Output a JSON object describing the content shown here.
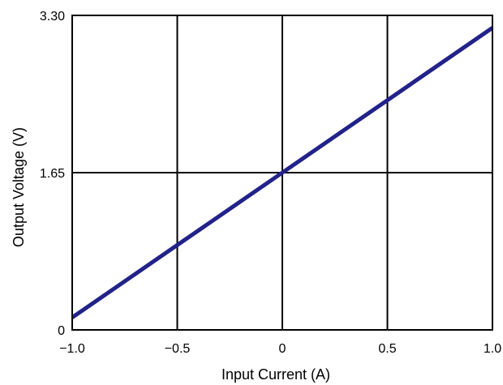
{
  "chart_data": {
    "type": "line",
    "title": "",
    "xlabel": "Input Current (A)",
    "ylabel": "Output Voltage (V)",
    "xlim": [
      -1.0,
      1.0
    ],
    "ylim": [
      0,
      3.3
    ],
    "grid": true,
    "legend": "none",
    "x_ticks": [
      {
        "value": -1.0,
        "label": "−1.0"
      },
      {
        "value": -0.5,
        "label": "−0.5"
      },
      {
        "value": 0,
        "label": "0"
      },
      {
        "value": 0.5,
        "label": "0.5"
      },
      {
        "value": 1.0,
        "label": "1.0"
      }
    ],
    "y_ticks": [
      {
        "value": 0,
        "label": "0"
      },
      {
        "value": 1.65,
        "label": "1.65"
      },
      {
        "value": 3.3,
        "label": "3.30"
      }
    ],
    "series": [
      {
        "color": "#22228a",
        "x": [
          -1.0,
          -0.5,
          0,
          0.5,
          1.0
        ],
        "y": [
          0.13,
          0.89,
          1.65,
          2.41,
          3.17
        ]
      }
    ]
  }
}
